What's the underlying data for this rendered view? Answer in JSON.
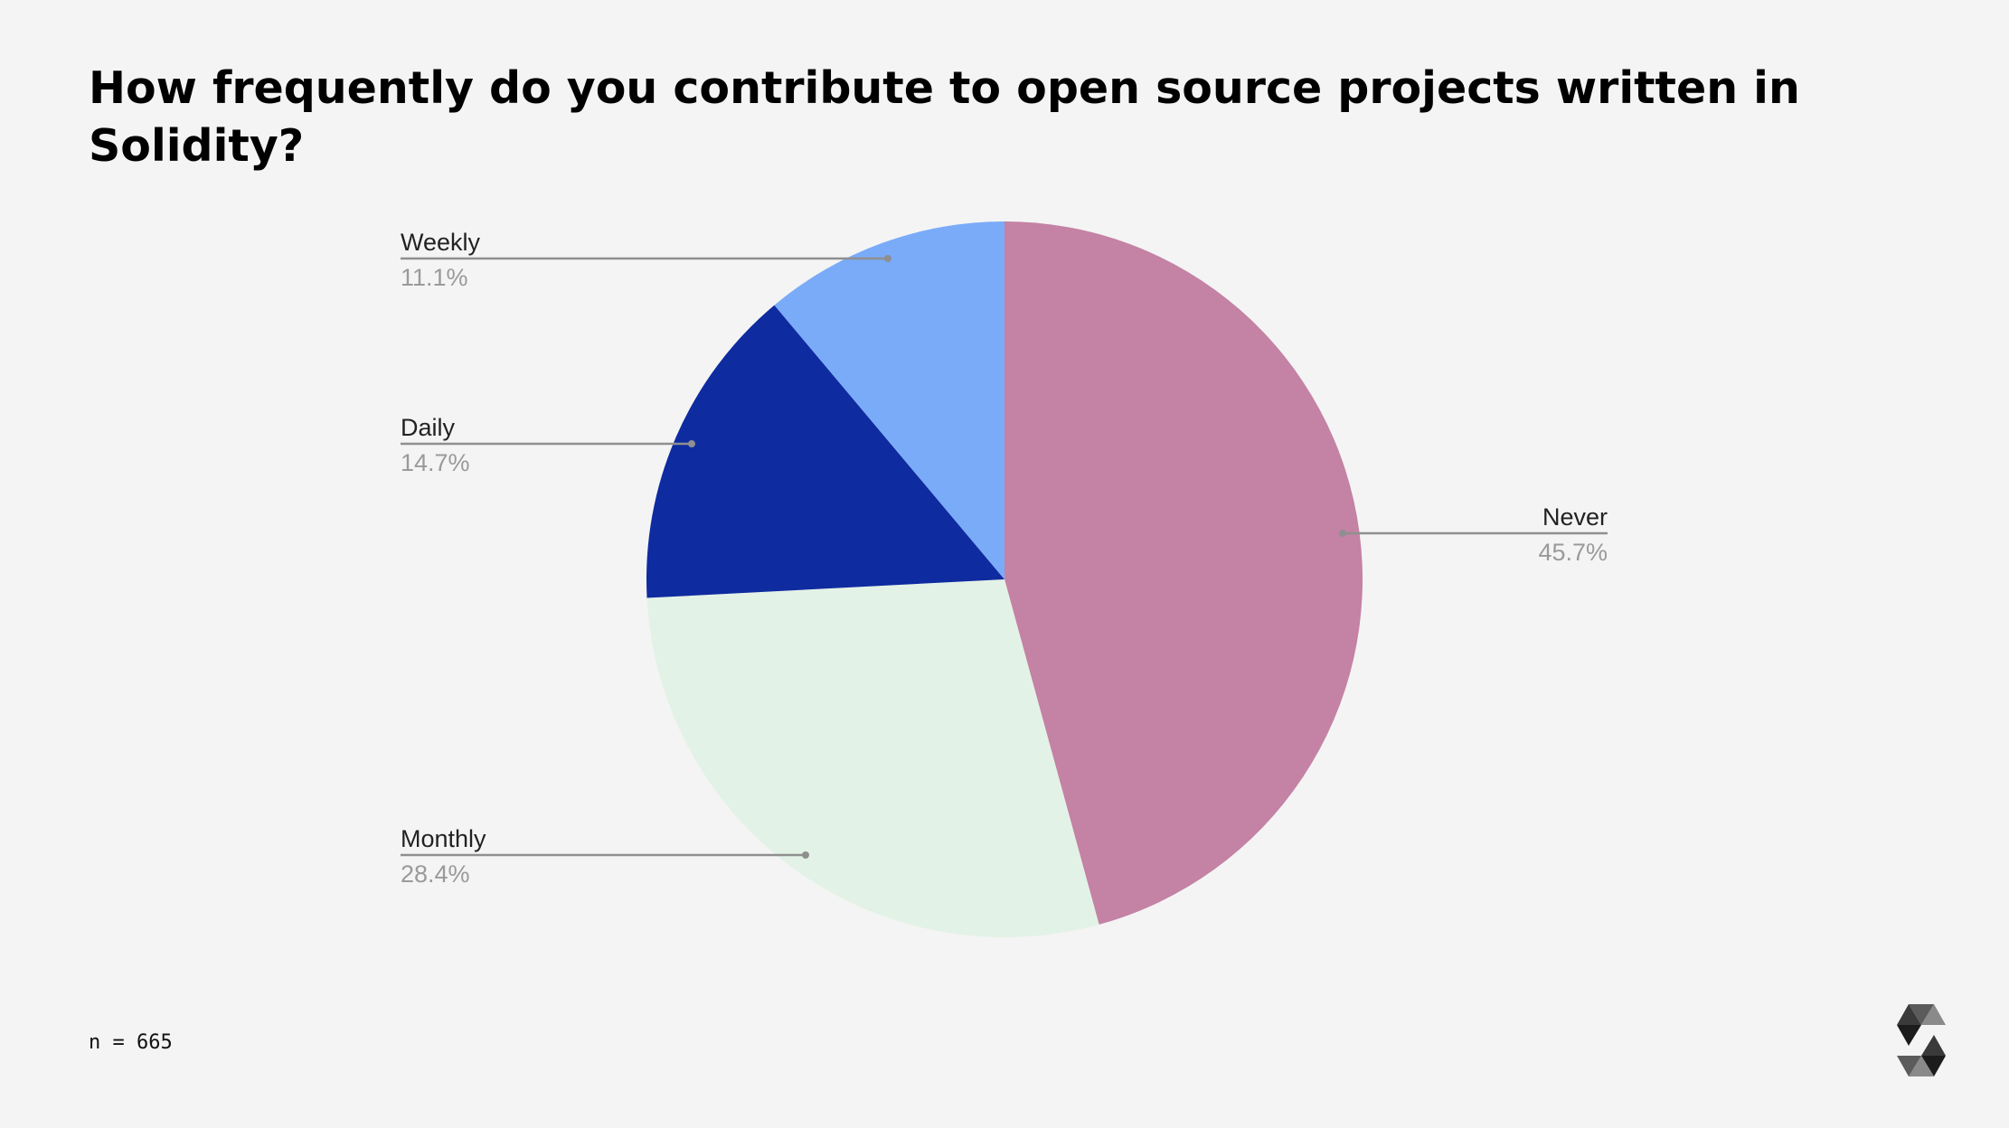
{
  "title": "How frequently do you contribute to open source projects written in Solidity?",
  "footnote": "n = 665",
  "chart_data": {
    "type": "pie",
    "title": "How frequently do you contribute to open source projects written in Solidity?",
    "slices": [
      {
        "label": "Never",
        "value": 45.7,
        "value_label": "45.7%",
        "color": "#c482a4"
      },
      {
        "label": "Monthly",
        "value": 28.4,
        "value_label": "28.4%",
        "color": "#e3f2e6"
      },
      {
        "label": "Daily",
        "value": 14.7,
        "value_label": "14.7%",
        "color": "#0f2ba0"
      },
      {
        "label": "Weekly",
        "value": 11.1,
        "value_label": "11.1%",
        "color": "#7aabf9"
      }
    ],
    "start": "12 o'clock",
    "direction": "clockwise",
    "labels": "outside with leader lines"
  }
}
